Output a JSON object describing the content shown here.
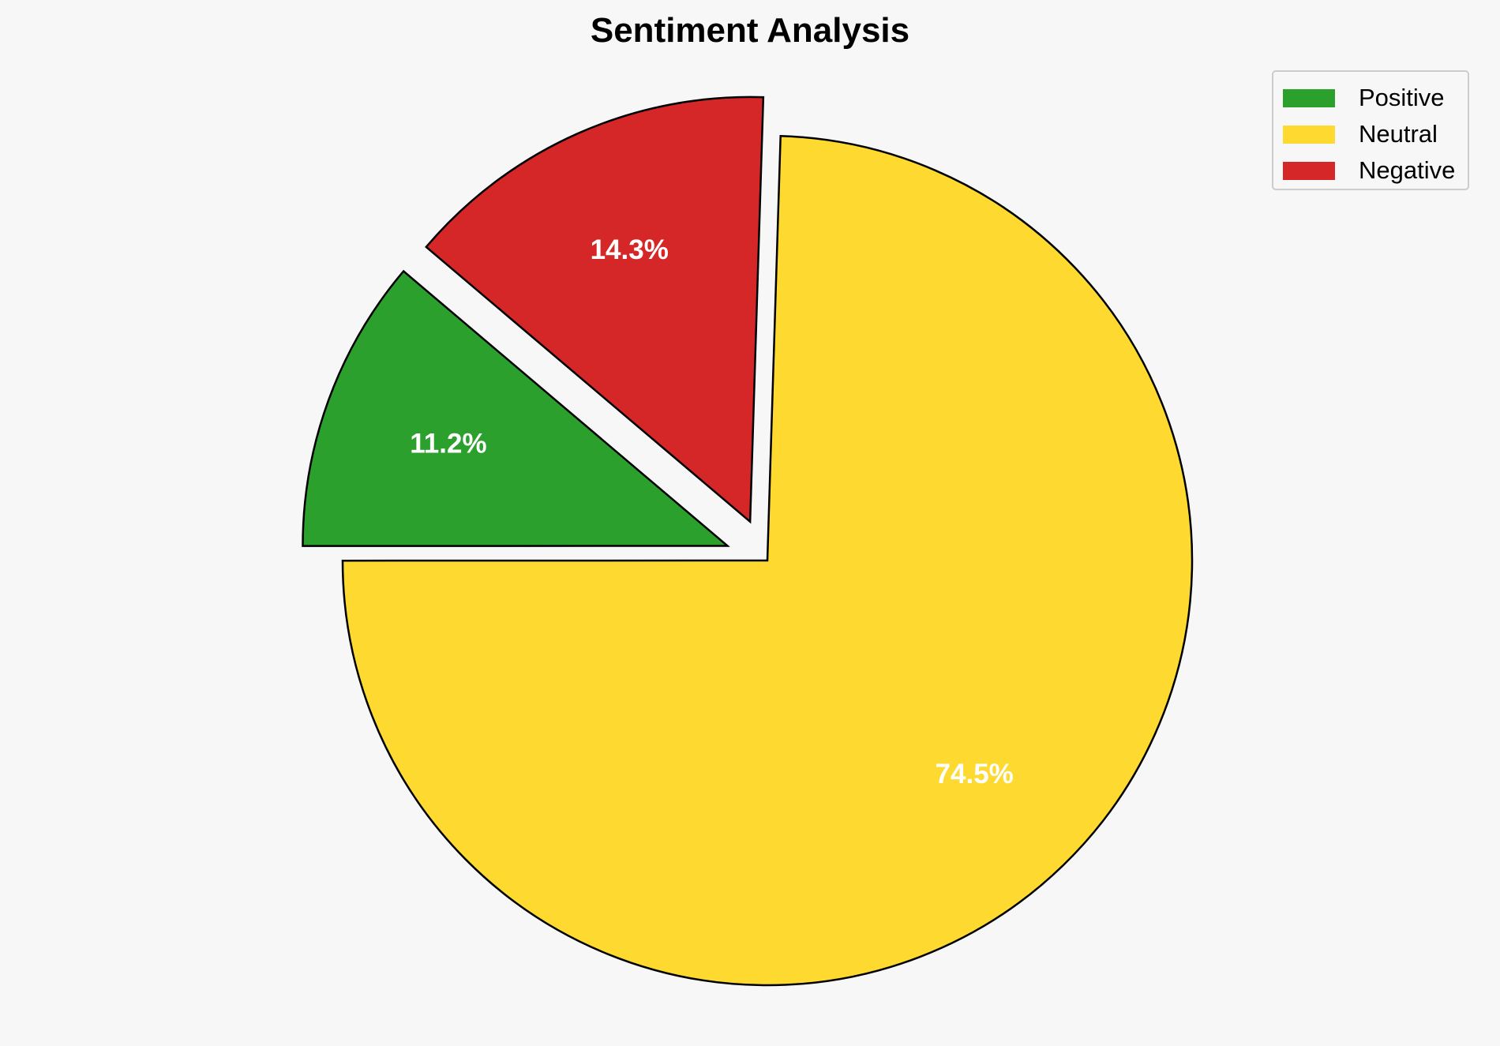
{
  "chart_data": {
    "type": "pie",
    "title": "Sentiment Analysis",
    "categories": [
      "Positive",
      "Neutral",
      "Negative"
    ],
    "values": [
      11.2,
      74.5,
      14.3
    ],
    "labels": [
      "11.2%",
      "74.5%",
      "14.3%"
    ],
    "colors": [
      "#2ca02c",
      "#fed92f",
      "#d62728"
    ],
    "explode": [
      0.1,
      0,
      0.1
    ],
    "startangle": 139.7,
    "counterclockwise": true,
    "edgecolor": "#000000",
    "legend_position": "top-right"
  }
}
